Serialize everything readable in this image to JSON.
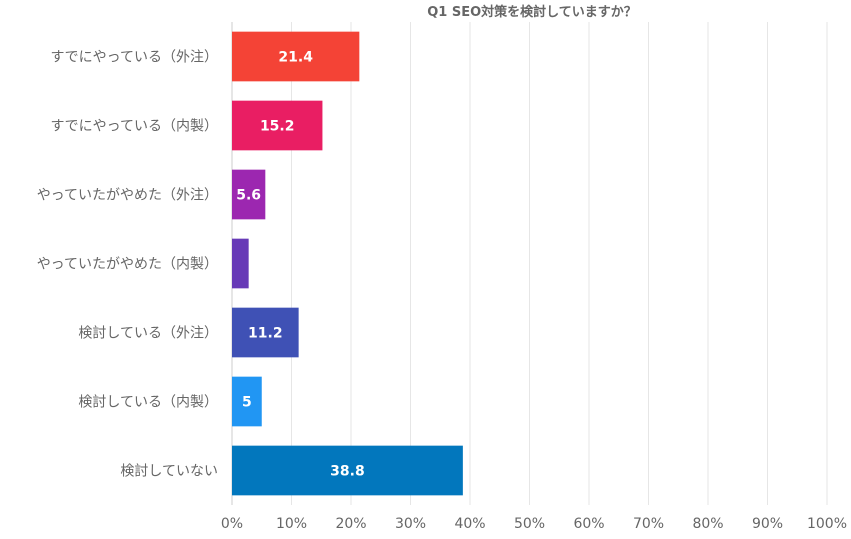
{
  "chart_data": {
    "type": "bar",
    "orientation": "horizontal",
    "title": "Q1 SEO対策を検討していますか？",
    "categories": [
      "すでにやっている（外注）",
      "すでにやっている（内製）",
      "やっていたがやめた（外注）",
      "やっていたがやめた（内製）",
      "検討している（外注）",
      "検討している（内製）",
      "検討していない"
    ],
    "values": [
      21.4,
      15.2,
      5.6,
      2.8,
      11.2,
      5,
      38.8
    ],
    "data_labels": [
      "21.4",
      "15.2",
      "5.6",
      "",
      "11.2",
      "5",
      "38.8"
    ],
    "colors": [
      "#f44336",
      "#e91e63",
      "#9c27b0",
      "#673ab7",
      "#3f51b5",
      "#2196f3",
      "#0277bd"
    ],
    "xlim": [
      0,
      100
    ],
    "x_ticks": [
      "0%",
      "10%",
      "20%",
      "30%",
      "40%",
      "50%",
      "60%",
      "70%",
      "80%",
      "90%",
      "100%"
    ],
    "grid": true,
    "legend": "none"
  }
}
